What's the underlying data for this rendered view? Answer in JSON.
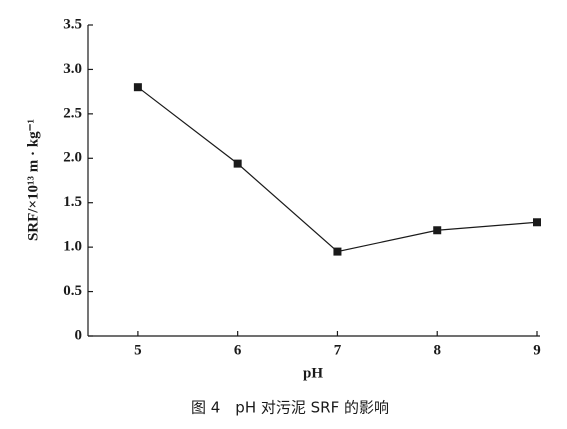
{
  "chart_data": {
    "type": "line",
    "x_label": "pH",
    "y_label": "SRF/×10¹³ m · kg⁻¹",
    "caption": "图 4　pH 对污泥 SRF 的影响",
    "x": [
      5,
      6,
      7,
      8,
      9
    ],
    "values": [
      2.8,
      1.94,
      0.95,
      1.19,
      1.28
    ],
    "color": "#1a1a1a",
    "xlim": [
      4.5,
      9
    ],
    "xticks": [
      5,
      6,
      7,
      8,
      9
    ],
    "ylim": [
      0,
      3.5
    ],
    "yticks": [
      0,
      0.5,
      {
        "value": 1,
        "label": "1.0"
      },
      1.5,
      {
        "value": 2,
        "label": "2.0"
      },
      2.5,
      {
        "value": 3,
        "label": "3.0"
      },
      3.5
    ]
  }
}
